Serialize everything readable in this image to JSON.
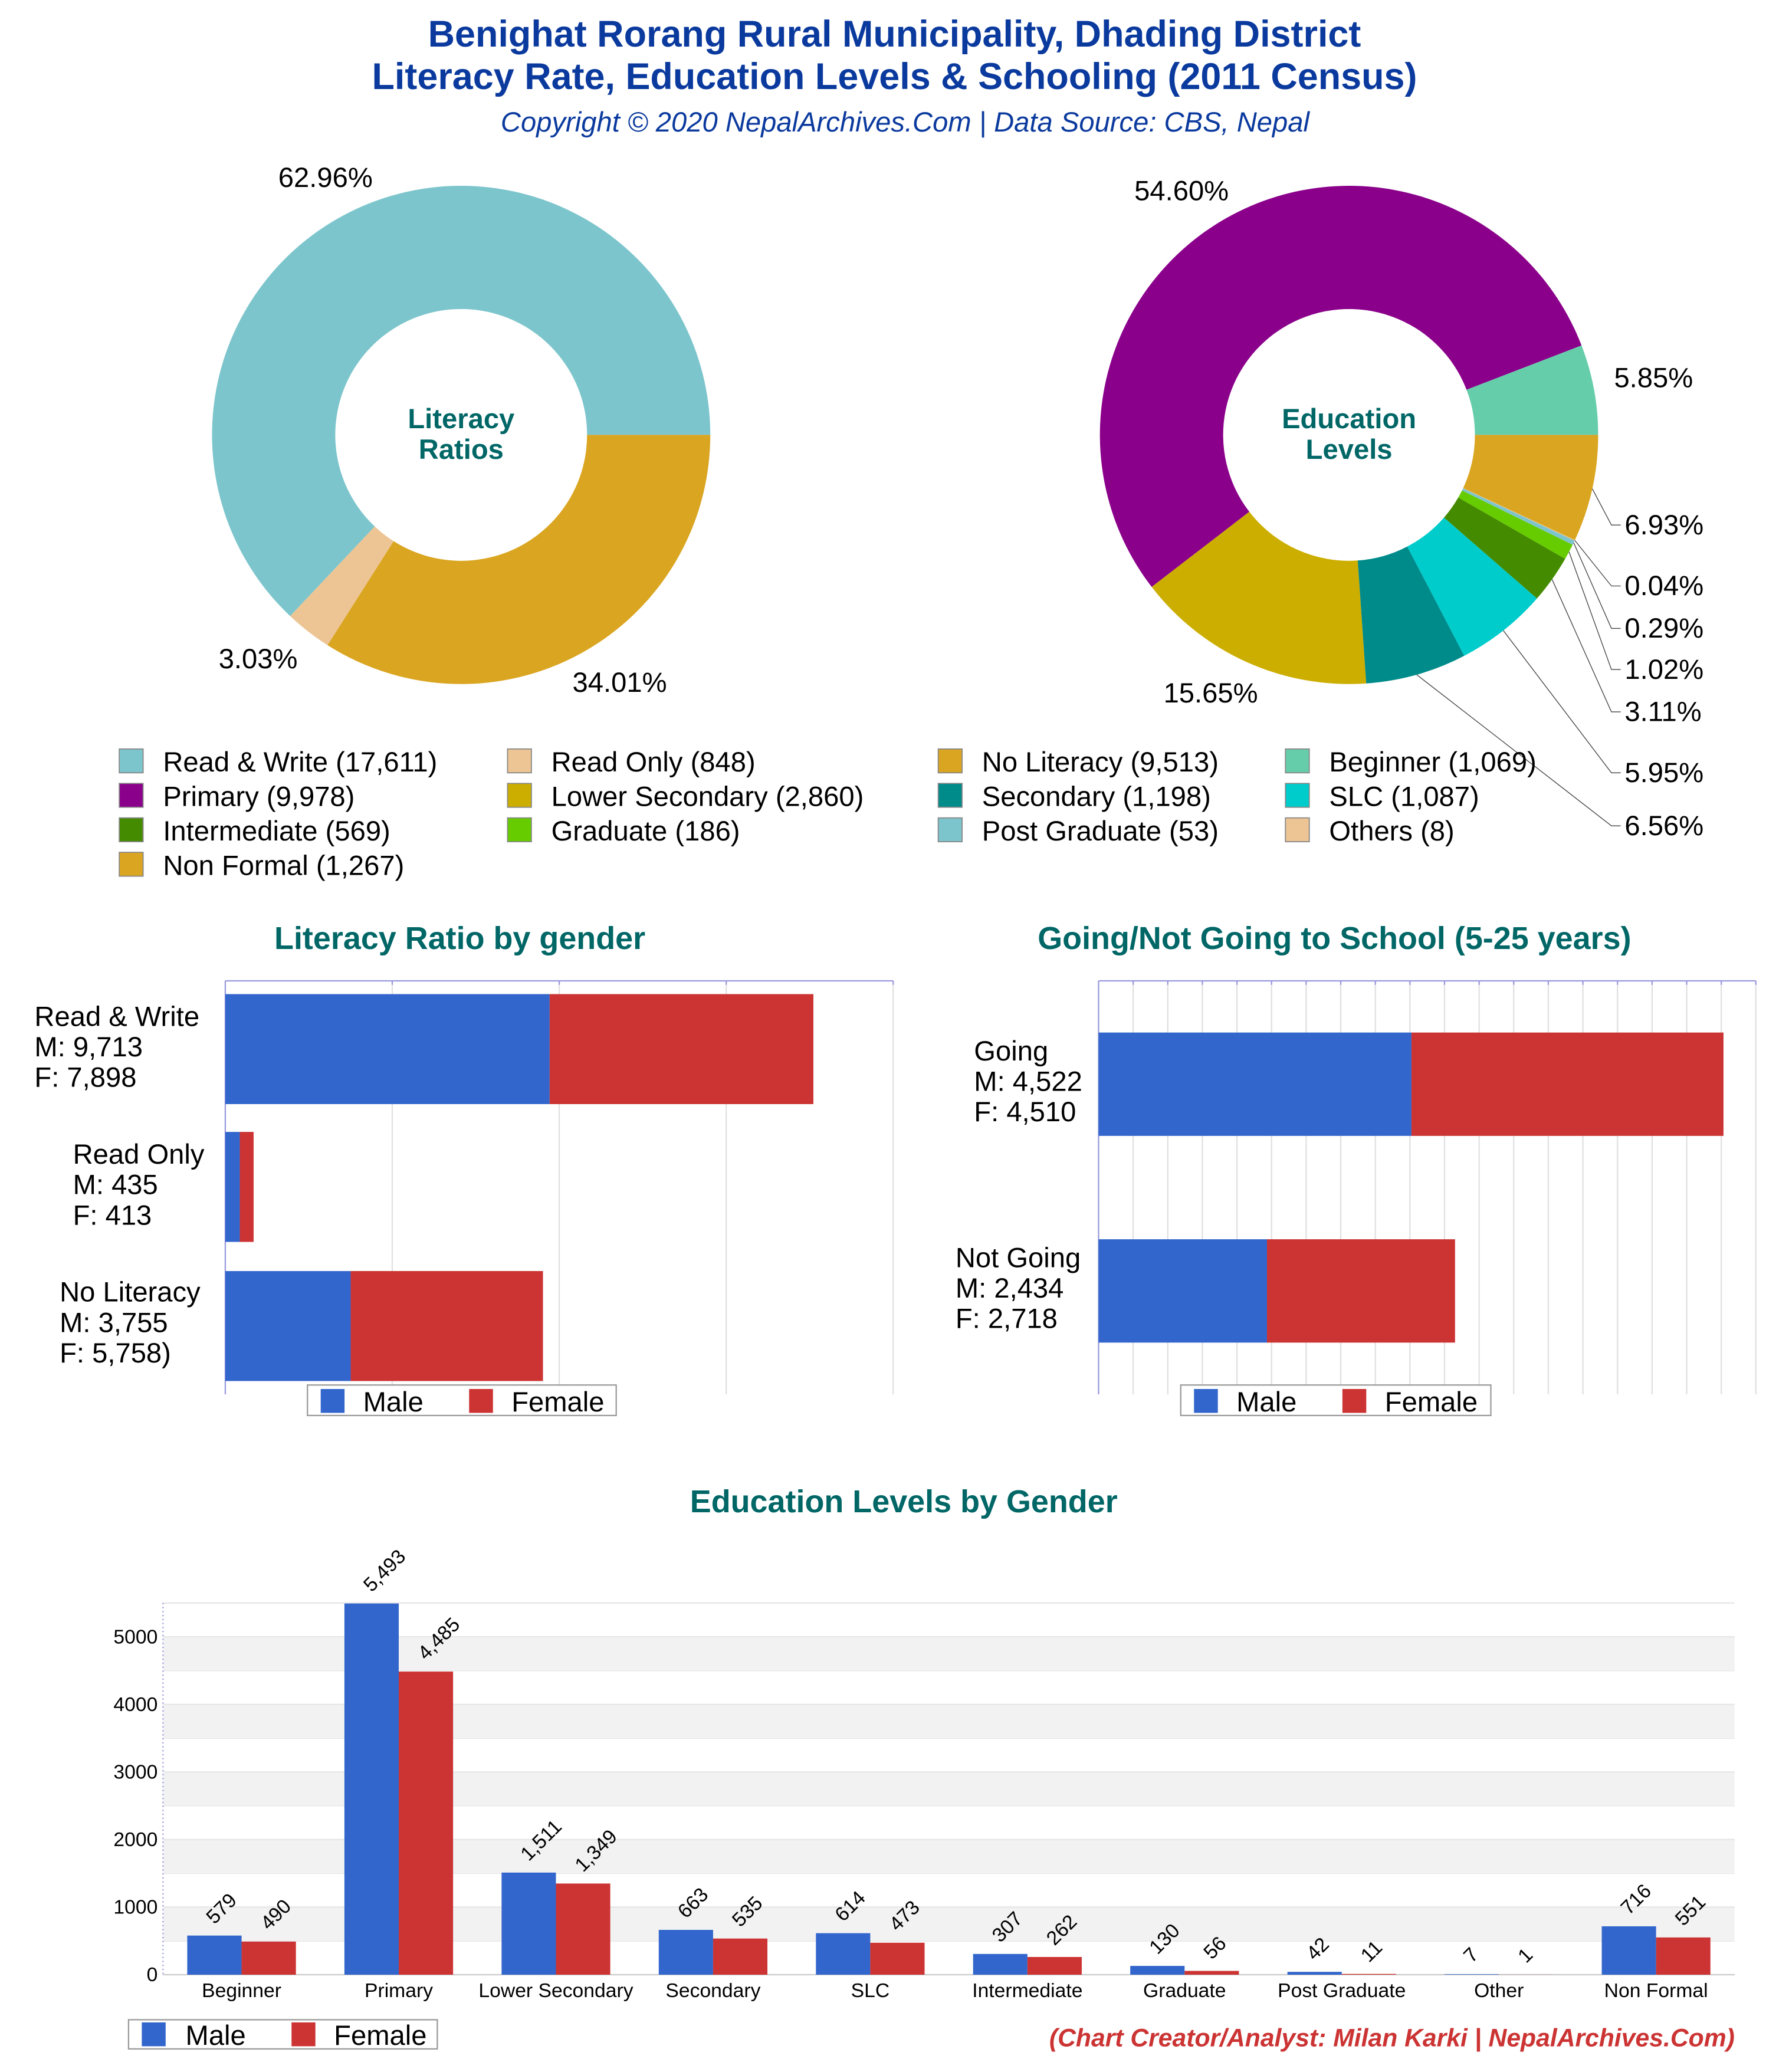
{
  "header": {
    "title_line1": "Benighat Rorang Rural Municipality, Dhading District",
    "title_line2": "Literacy Rate, Education Levels & Schooling (2011 Census)",
    "copyright": "Copyright © 2020 NepalArchives.Com | Data Source: CBS, Nepal"
  },
  "colors": {
    "male": "#3366cc",
    "female": "#cc3333",
    "title_teal": "#006666",
    "header_blue": "#0b3a9e"
  },
  "legend_items": [
    {
      "label": "Read & Write (17,611)",
      "color": "#7dc5cc"
    },
    {
      "label": "Read Only (848)",
      "color": "#edc594"
    },
    {
      "label": "No Literacy (9,513)",
      "color": "#daa520"
    },
    {
      "label": "Beginner (1,069)",
      "color": "#66cdaa"
    },
    {
      "label": "Primary (9,978)",
      "color": "#8b008b"
    },
    {
      "label": "Lower Secondary (2,860)",
      "color": "#ccae00"
    },
    {
      "label": "Secondary (1,198)",
      "color": "#008b8b"
    },
    {
      "label": "SLC (1,087)",
      "color": "#00cccc"
    },
    {
      "label": "Intermediate (569)",
      "color": "#458b00"
    },
    {
      "label": "Graduate (186)",
      "color": "#66cc00"
    },
    {
      "label": "Post Graduate (53)",
      "color": "#7dc5cc"
    },
    {
      "label": "Others (8)",
      "color": "#edc594"
    },
    {
      "label": "Non Formal (1,267)",
      "color": "#daa520"
    }
  ],
  "chart_data": [
    {
      "type": "pie",
      "donut": true,
      "center_label": [
        "Literacy",
        "Ratios"
      ],
      "categories": [
        "Read & Write",
        "Read Only",
        "No Literacy"
      ],
      "values": [
        17611,
        848,
        9513
      ],
      "percent_labels": [
        "62.96%",
        "3.03%",
        "34.01%"
      ],
      "colors": [
        "#7dc5cc",
        "#edc594",
        "#daa520"
      ]
    },
    {
      "type": "pie",
      "donut": true,
      "center_label": [
        "Education",
        "Levels"
      ],
      "categories": [
        "Beginner",
        "Primary",
        "Lower Secondary",
        "Secondary",
        "SLC",
        "Intermediate",
        "Graduate",
        "Post Graduate",
        "Others",
        "Non Formal"
      ],
      "values": [
        1069,
        9978,
        2860,
        1198,
        1087,
        569,
        186,
        53,
        8,
        1267
      ],
      "percent_labels": [
        "5.85%",
        "54.60%",
        "15.65%",
        "6.56%",
        "5.95%",
        "3.11%",
        "1.02%",
        "0.29%",
        "0.04%",
        "6.93%"
      ],
      "colors": [
        "#66cdaa",
        "#8b008b",
        "#ccae00",
        "#008b8b",
        "#00cccc",
        "#458b00",
        "#66cc00",
        "#7dc5cc",
        "#edc594",
        "#daa520"
      ]
    },
    {
      "type": "bar",
      "orientation": "horizontal",
      "stacked": true,
      "title": "Literacy Ratio by gender",
      "categories": [
        [
          "Read & Write",
          "M: 9,713",
          "F: 7,898"
        ],
        [
          "Read Only",
          "M: 435",
          "F: 413"
        ],
        [
          "No Literacy",
          "M: 3,755",
          "F: 5,758)"
        ]
      ],
      "series": [
        {
          "name": "Male",
          "values": [
            9713,
            435,
            3755
          ]
        },
        {
          "name": "Female",
          "values": [
            7898,
            413,
            5758
          ]
        }
      ],
      "xlim": [
        0,
        20000
      ],
      "grid_step": 5000,
      "legend": "bottom"
    },
    {
      "type": "bar",
      "orientation": "horizontal",
      "stacked": true,
      "title": "Going/Not Going to School (5-25 years)",
      "categories": [
        [
          "Going",
          "M: 4,522",
          "F: 4,510"
        ],
        [
          "Not Going",
          "M: 2,434",
          "F: 2,718"
        ]
      ],
      "series": [
        {
          "name": "Male",
          "values": [
            4522,
            2434
          ]
        },
        {
          "name": "Female",
          "values": [
            4510,
            2718
          ]
        }
      ],
      "xlim": [
        0,
        9500
      ],
      "grid_step": 500,
      "legend": "bottom"
    },
    {
      "type": "bar",
      "orientation": "vertical",
      "title": "Education Levels by Gender",
      "categories": [
        "Beginner",
        "Primary",
        "Lower Secondary",
        "Secondary",
        "SLC",
        "Intermediate",
        "Graduate",
        "Post Graduate",
        "Other",
        "Non Formal"
      ],
      "series": [
        {
          "name": "Male",
          "values": [
            579,
            5493,
            1511,
            663,
            614,
            307,
            130,
            42,
            7,
            716
          ],
          "labels": [
            "579",
            "5,493",
            "1,511",
            "663",
            "614",
            "307",
            "130",
            "42",
            "7",
            "716"
          ]
        },
        {
          "name": "Female",
          "values": [
            490,
            4485,
            1349,
            535,
            473,
            262,
            56,
            11,
            1,
            551
          ],
          "labels": [
            "490",
            "4,485",
            "1,349",
            "535",
            "473",
            "262",
            "56",
            "11",
            "1",
            "551"
          ]
        }
      ],
      "ylim": [
        0,
        5500
      ],
      "yticks": [
        "0",
        "1000",
        "2000",
        "3000",
        "4000",
        "5000"
      ],
      "legend": "bottom-left"
    }
  ],
  "credit": "(Chart Creator/Analyst: Milan Karki | NepalArchives.Com)"
}
